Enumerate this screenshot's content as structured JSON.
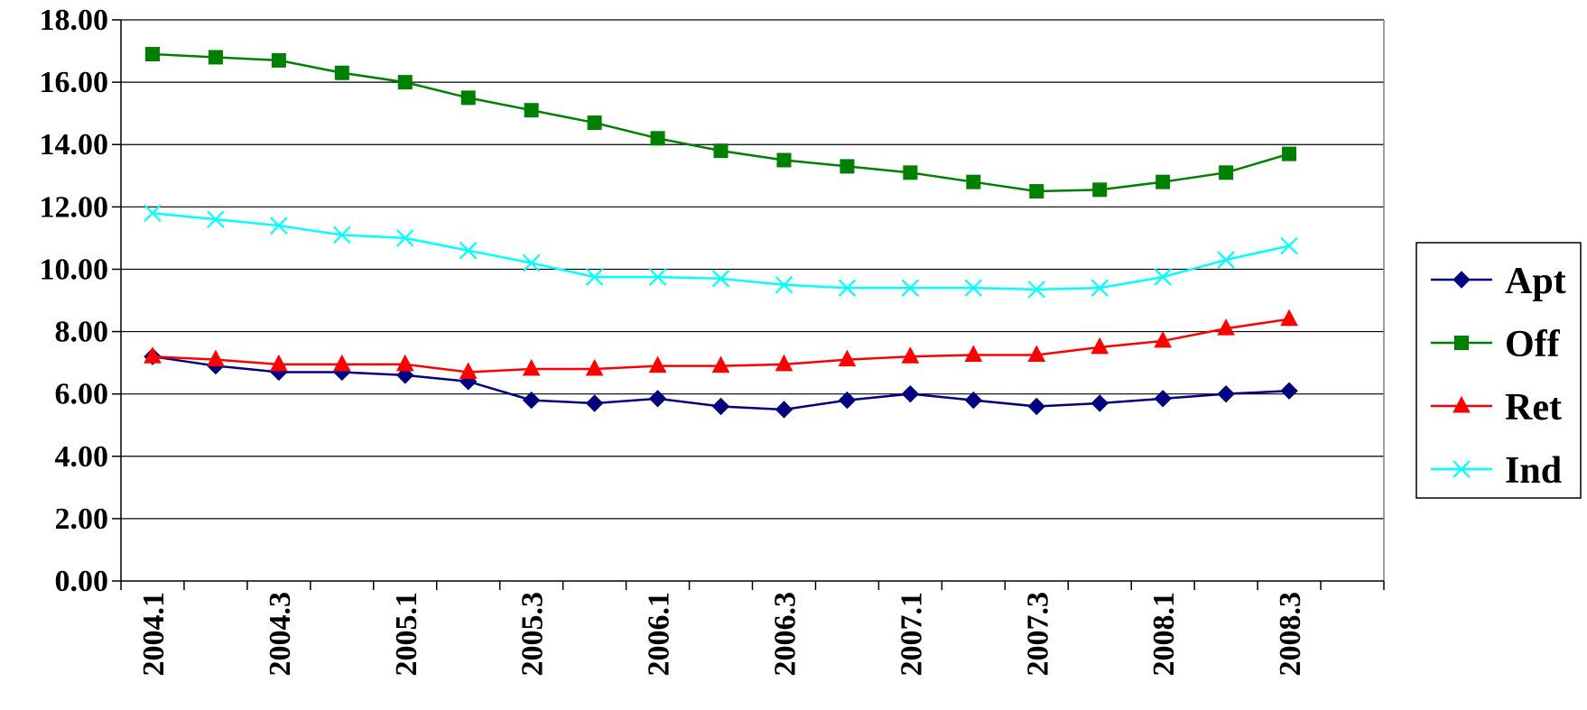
{
  "chart_data": {
    "type": "line",
    "title": "",
    "xlabel": "",
    "ylabel": "",
    "categories": [
      "2004.1",
      "2004.2",
      "2004.3",
      "2004.4",
      "2005.1",
      "2005.2",
      "2005.3",
      "2005.4",
      "2006.1",
      "2006.2",
      "2006.3",
      "2006.4",
      "2007.1",
      "2007.2",
      "2007.3",
      "2007.4",
      "2008.1",
      "2008.2",
      "2008.3"
    ],
    "x_tick_labels": [
      "2004.1",
      "",
      "2004.3",
      "",
      "2005.1",
      "",
      "2005.3",
      "",
      "2006.1",
      "",
      "2006.3",
      "",
      "2007.1",
      "",
      "2007.3",
      "",
      "2008.1",
      "",
      "2008.3"
    ],
    "ylim": [
      0,
      18
    ],
    "y_ticks": [
      "0.00",
      "2.00",
      "4.00",
      "6.00",
      "8.00",
      "10.00",
      "12.00",
      "14.00",
      "16.00",
      "18.00"
    ],
    "y_step": 2,
    "grid": true,
    "legend_position": "right",
    "series": [
      {
        "name": "Apt",
        "color": "#000080",
        "marker": "diamond",
        "values": [
          7.2,
          6.9,
          6.7,
          6.7,
          6.6,
          6.4,
          5.8,
          5.7,
          5.85,
          5.6,
          5.5,
          5.8,
          6.0,
          5.8,
          5.6,
          5.7,
          5.85,
          6.0,
          6.1
        ]
      },
      {
        "name": "Off",
        "color": "#008000",
        "marker": "square",
        "values": [
          16.9,
          16.8,
          16.7,
          16.3,
          16.0,
          15.5,
          15.1,
          14.7,
          14.2,
          13.8,
          13.5,
          13.3,
          13.1,
          12.8,
          12.5,
          12.55,
          12.8,
          13.1,
          13.7
        ]
      },
      {
        "name": "Ret",
        "color": "#FF0000",
        "marker": "triangle",
        "values": [
          7.2,
          7.1,
          6.95,
          6.95,
          6.95,
          6.7,
          6.8,
          6.8,
          6.9,
          6.9,
          6.95,
          7.1,
          7.2,
          7.25,
          7.25,
          7.5,
          7.7,
          8.1,
          8.4
        ]
      },
      {
        "name": "Ind",
        "color": "#00FFFF",
        "marker": "x",
        "values": [
          11.8,
          11.6,
          11.4,
          11.1,
          11.0,
          10.6,
          10.2,
          9.75,
          9.75,
          9.7,
          9.5,
          9.4,
          9.4,
          9.4,
          9.35,
          9.4,
          9.75,
          10.3,
          10.75
        ]
      }
    ]
  }
}
